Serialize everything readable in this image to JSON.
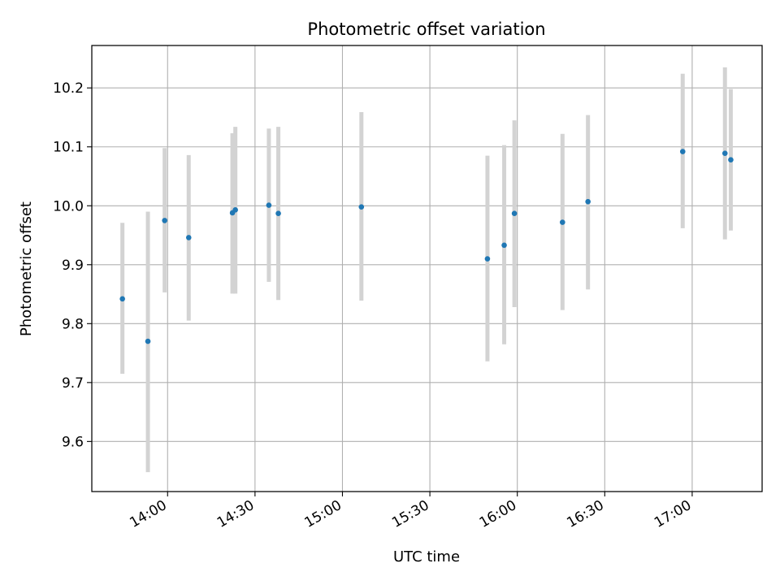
{
  "chart_data": {
    "type": "scatter",
    "title": "Photometric offset variation",
    "xlabel": "UTC time",
    "ylabel": "Photometric offset",
    "xlim": [
      "13:34",
      "17:24"
    ],
    "ylim": [
      9.515,
      10.272
    ],
    "grid": true,
    "x_ticks": [
      "14:00",
      "14:30",
      "15:00",
      "15:30",
      "16:00",
      "16:30",
      "17:00"
    ],
    "y_ticks": [
      "9.6",
      "9.7",
      "9.8",
      "9.9",
      "10.0",
      "10.1",
      "10.2"
    ],
    "series": [
      {
        "marker_color": "#1f77b4",
        "errorbar_color": "#d3d3d3",
        "points": [
          {
            "time": "13:44:30",
            "y": 9.842,
            "ylow": 9.715,
            "yhigh": 9.971
          },
          {
            "time": "13:53:15",
            "y": 9.77,
            "ylow": 9.548,
            "yhigh": 9.99
          },
          {
            "time": "13:59:00",
            "y": 9.975,
            "ylow": 9.853,
            "yhigh": 10.098
          },
          {
            "time": "14:07:15",
            "y": 9.946,
            "ylow": 9.805,
            "yhigh": 10.086
          },
          {
            "time": "14:22:15",
            "y": 9.988,
            "ylow": 9.851,
            "yhigh": 10.123
          },
          {
            "time": "14:23:15",
            "y": 9.993,
            "ylow": 9.851,
            "yhigh": 10.134
          },
          {
            "time": "14:34:45",
            "y": 10.001,
            "ylow": 9.871,
            "yhigh": 10.131
          },
          {
            "time": "14:38:00",
            "y": 9.987,
            "ylow": 9.84,
            "yhigh": 10.134
          },
          {
            "time": "15:06:30",
            "y": 9.998,
            "ylow": 9.839,
            "yhigh": 10.159
          },
          {
            "time": "15:49:45",
            "y": 9.91,
            "ylow": 9.736,
            "yhigh": 10.085
          },
          {
            "time": "15:55:30",
            "y": 9.933,
            "ylow": 9.765,
            "yhigh": 10.103
          },
          {
            "time": "15:59:00",
            "y": 9.987,
            "ylow": 9.828,
            "yhigh": 10.145
          },
          {
            "time": "16:15:30",
            "y": 9.972,
            "ylow": 9.823,
            "yhigh": 10.122
          },
          {
            "time": "16:24:15",
            "y": 10.007,
            "ylow": 9.858,
            "yhigh": 10.154
          },
          {
            "time": "16:56:45",
            "y": 10.092,
            "ylow": 9.962,
            "yhigh": 10.224
          },
          {
            "time": "17:11:15",
            "y": 10.089,
            "ylow": 9.943,
            "yhigh": 10.235
          },
          {
            "time": "17:13:15",
            "y": 10.078,
            "ylow": 9.958,
            "yhigh": 10.198
          }
        ]
      }
    ]
  }
}
